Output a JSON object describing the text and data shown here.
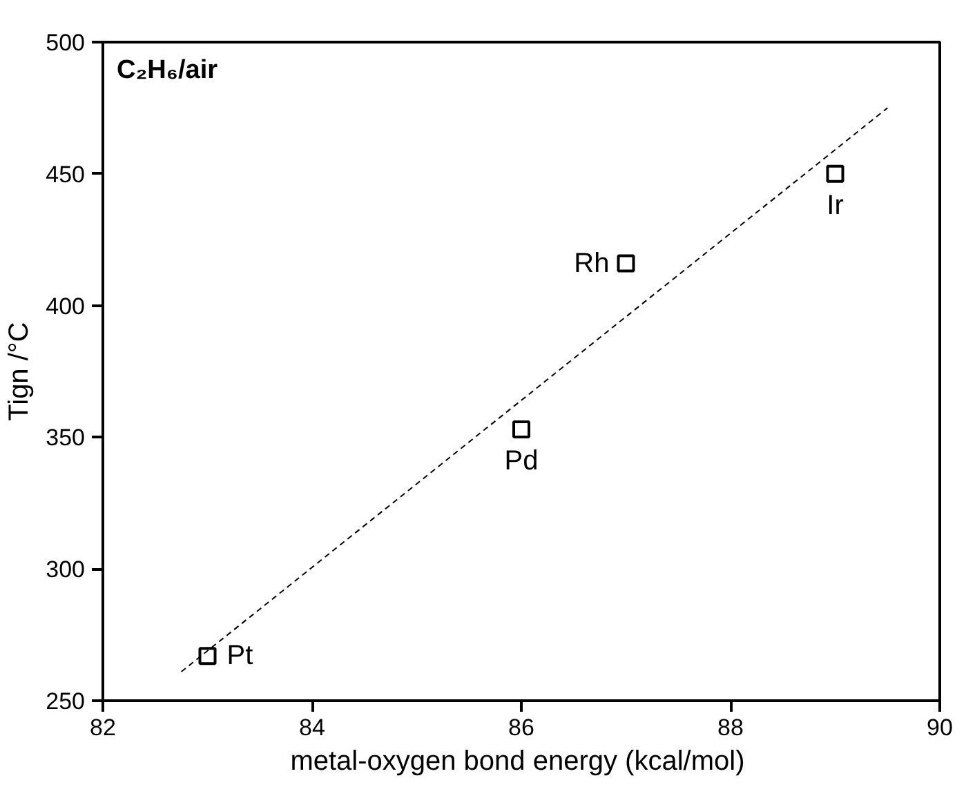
{
  "chart_data": {
    "type": "scatter",
    "xlabel": "metal-oxygen bond energy  (kcal/mol)",
    "ylabel": "Tign /°C",
    "xlim": [
      82,
      90
    ],
    "xticks": [
      82,
      84,
      86,
      88,
      90
    ],
    "ylim": [
      250,
      500
    ],
    "yticks": [
      250,
      300,
      350,
      400,
      450,
      500
    ],
    "series": [
      {
        "color": "#000000",
        "marker": "square",
        "x": [
          83,
          86,
          87,
          89
        ],
        "values": [
          267,
          353,
          416,
          450
        ]
      },
      {
        "type": "line",
        "color": "#000000",
        "line_style": "dashed",
        "x": [
          82.75,
          89.5
        ],
        "values": [
          261,
          475
        ]
      }
    ],
    "annotations": [
      "C₂H₆/air",
      {
        "text": "Pt",
        "x": 83,
        "y": 267
      },
      {
        "text": "Pd",
        "x": 86,
        "y": 353
      },
      {
        "text": "Rh",
        "x": 87,
        "y": 416
      },
      {
        "text": "Ir",
        "x": 89,
        "y": 450
      }
    ]
  }
}
